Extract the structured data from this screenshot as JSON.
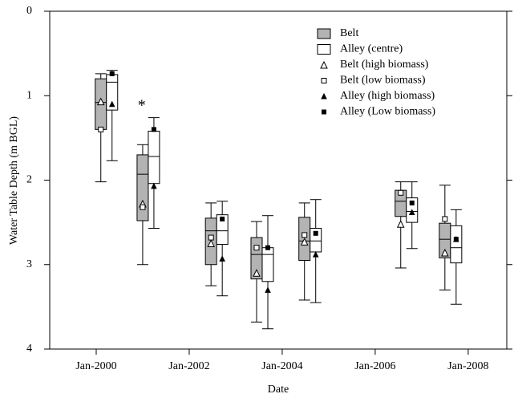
{
  "chart_data": {
    "type": "box",
    "xlabel": "Date",
    "ylabel": "Water Table Depth (m BGL)",
    "x": [
      2000.22,
      2001.12,
      2002.59,
      2003.57,
      2004.6,
      2006.67,
      2007.62
    ],
    "xlim": [
      1999,
      2008.83
    ],
    "xticks": [
      {
        "value": 2000,
        "label": "Jan-2000"
      },
      {
        "value": 2002,
        "label": "Jan-2002"
      },
      {
        "value": 2004,
        "label": "Jan-2004"
      },
      {
        "value": 2006,
        "label": "Jan-2006"
      },
      {
        "value": 2008,
        "label": "Jan-2008"
      }
    ],
    "ylim": [
      0,
      4
    ],
    "yticks": [
      0,
      1,
      2,
      3,
      4
    ],
    "y_reversed": true,
    "legend": "upper right",
    "series": [
      {
        "name": "Belt",
        "color": "#b3b3b3",
        "whisker_low": [
          0.74,
          1.58,
          2.27,
          2.49,
          2.27,
          2.02,
          2.06
        ],
        "q1": [
          0.8,
          1.7,
          2.45,
          2.68,
          2.44,
          2.12,
          2.51
        ],
        "median": [
          1.08,
          1.93,
          2.6,
          2.88,
          2.72,
          2.25,
          2.7
        ],
        "q3": [
          1.4,
          2.48,
          3.0,
          3.17,
          2.95,
          2.43,
          2.92
        ],
        "whisker_high": [
          2.02,
          3.0,
          3.25,
          3.68,
          3.42,
          3.04,
          3.3
        ],
        "markers": [
          {
            "name": "Belt (high biomass)",
            "symbol": "open-triangle",
            "values": [
              1.07,
              2.28,
              2.75,
              3.1,
              2.73,
              2.52,
              2.86
            ]
          },
          {
            "name": "Belt (low biomass)",
            "symbol": "open-square",
            "values": [
              1.4,
              2.32,
              2.68,
              2.8,
              2.65,
              2.15,
              2.46
            ]
          }
        ]
      },
      {
        "name": "Alley (centre)",
        "color": "#ffffff",
        "whisker_low": [
          0.7,
          1.26,
          2.25,
          2.42,
          2.23,
          2.02,
          2.35
        ],
        "q1": [
          0.75,
          1.42,
          2.41,
          2.8,
          2.57,
          2.21,
          2.54
        ],
        "median": [
          0.84,
          1.72,
          2.6,
          2.88,
          2.72,
          2.37,
          2.8
        ],
        "q3": [
          1.17,
          2.04,
          2.76,
          3.2,
          2.85,
          2.5,
          2.98
        ],
        "whisker_high": [
          1.77,
          2.57,
          3.37,
          3.76,
          3.45,
          2.81,
          3.47
        ],
        "markers": [
          {
            "name": "Alley (high biomass)",
            "symbol": "filled-triangle",
            "values": [
              1.1,
              2.07,
              2.93,
              3.3,
              2.88,
              2.38,
              2.7
            ]
          },
          {
            "name": "Alley (Low biomass)",
            "symbol": "filled-square",
            "values": [
              0.74,
              1.4,
              2.46,
              2.8,
              2.63,
              2.27,
              2.7
            ]
          }
        ]
      }
    ],
    "annotations": [
      {
        "text": "*",
        "x": 2000.98,
        "y": 1.13
      }
    ]
  }
}
